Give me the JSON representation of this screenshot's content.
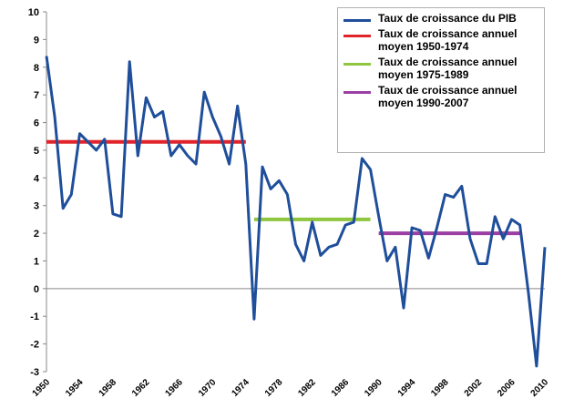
{
  "chart_data": {
    "type": "line",
    "title": "",
    "xlabel": "",
    "ylabel": "",
    "ylim": [
      -3,
      10
    ],
    "xlim": [
      1950,
      2010
    ],
    "y_ticks": [
      "10",
      "9",
      "8",
      "7",
      "6",
      "5",
      "4",
      "3",
      "2",
      "1",
      "0",
      "-1",
      "-2",
      "-3"
    ],
    "x_ticks": [
      "1950",
      "1954",
      "1958",
      "1962",
      "1966",
      "1970",
      "1974",
      "1978",
      "1982",
      "1986",
      "1990",
      "1994",
      "1998",
      "2002",
      "2006",
      "2010"
    ],
    "grid": false,
    "legend_position": "top-right",
    "series": [
      {
        "name": "Taux de croissance du PIB",
        "color": "#1f4e9a",
        "x": [
          1950,
          1951,
          1952,
          1953,
          1954,
          1955,
          1956,
          1957,
          1958,
          1959,
          1960,
          1961,
          1962,
          1963,
          1964,
          1965,
          1966,
          1967,
          1968,
          1969,
          1970,
          1971,
          1972,
          1973,
          1974,
          1975,
          1976,
          1977,
          1978,
          1979,
          1980,
          1981,
          1982,
          1983,
          1984,
          1985,
          1986,
          1987,
          1988,
          1989,
          1990,
          1991,
          1992,
          1993,
          1994,
          1995,
          1996,
          1997,
          1998,
          1999,
          2000,
          2001,
          2002,
          2003,
          2004,
          2005,
          2006,
          2007,
          2008,
          2009,
          2010
        ],
        "values": [
          8.4,
          6.2,
          2.9,
          3.4,
          5.6,
          5.3,
          5.0,
          5.4,
          2.7,
          2.6,
          8.2,
          4.8,
          6.9,
          6.2,
          6.4,
          4.8,
          5.2,
          4.8,
          4.5,
          7.1,
          6.2,
          5.5,
          4.5,
          6.6,
          4.5,
          -1.1,
          4.4,
          3.6,
          3.9,
          3.4,
          1.6,
          1.0,
          2.4,
          1.2,
          1.5,
          1.6,
          2.3,
          2.4,
          4.7,
          4.3,
          2.6,
          1.0,
          1.5,
          -0.7,
          2.2,
          2.1,
          1.1,
          2.2,
          3.4,
          3.3,
          3.7,
          1.8,
          0.9,
          0.9,
          2.6,
          1.8,
          2.5,
          2.3,
          -0.1,
          -2.8,
          1.5
        ]
      },
      {
        "name": "Taux de croissance annuel moyen 1950-1974",
        "color": "#e0242a",
        "x": [
          1950,
          1974
        ],
        "values": [
          5.3,
          5.3
        ]
      },
      {
        "name": "Taux de croissance annuel moyen 1975-1989",
        "color": "#8ec63f",
        "x": [
          1975,
          1989
        ],
        "values": [
          2.5,
          2.5
        ]
      },
      {
        "name": "Taux de croissance annuel moyen 1990-2007",
        "color": "#9b3fa5",
        "x": [
          1990,
          2007
        ],
        "values": [
          2.0,
          2.0
        ]
      }
    ]
  }
}
